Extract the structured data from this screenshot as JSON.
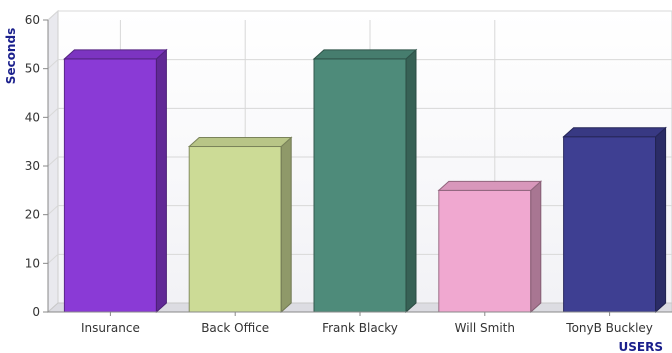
{
  "chart_data": {
    "type": "bar",
    "title": "",
    "xlabel": "USERS",
    "ylabel": "Seconds",
    "ylim": [
      0,
      60
    ],
    "yticks": [
      0,
      10,
      20,
      30,
      40,
      50,
      60
    ],
    "grid": true,
    "legend": "none",
    "style": "3d",
    "categories": [
      "Insurance",
      "Back Office",
      "Frank Blacky",
      "Will Smith",
      "TonyB Buckley"
    ],
    "values": [
      52,
      34,
      52,
      25,
      36
    ],
    "colors": [
      "#8a3ad6",
      "#ccdb96",
      "#4e8b7a",
      "#f0a8d0",
      "#3e3f92"
    ]
  }
}
